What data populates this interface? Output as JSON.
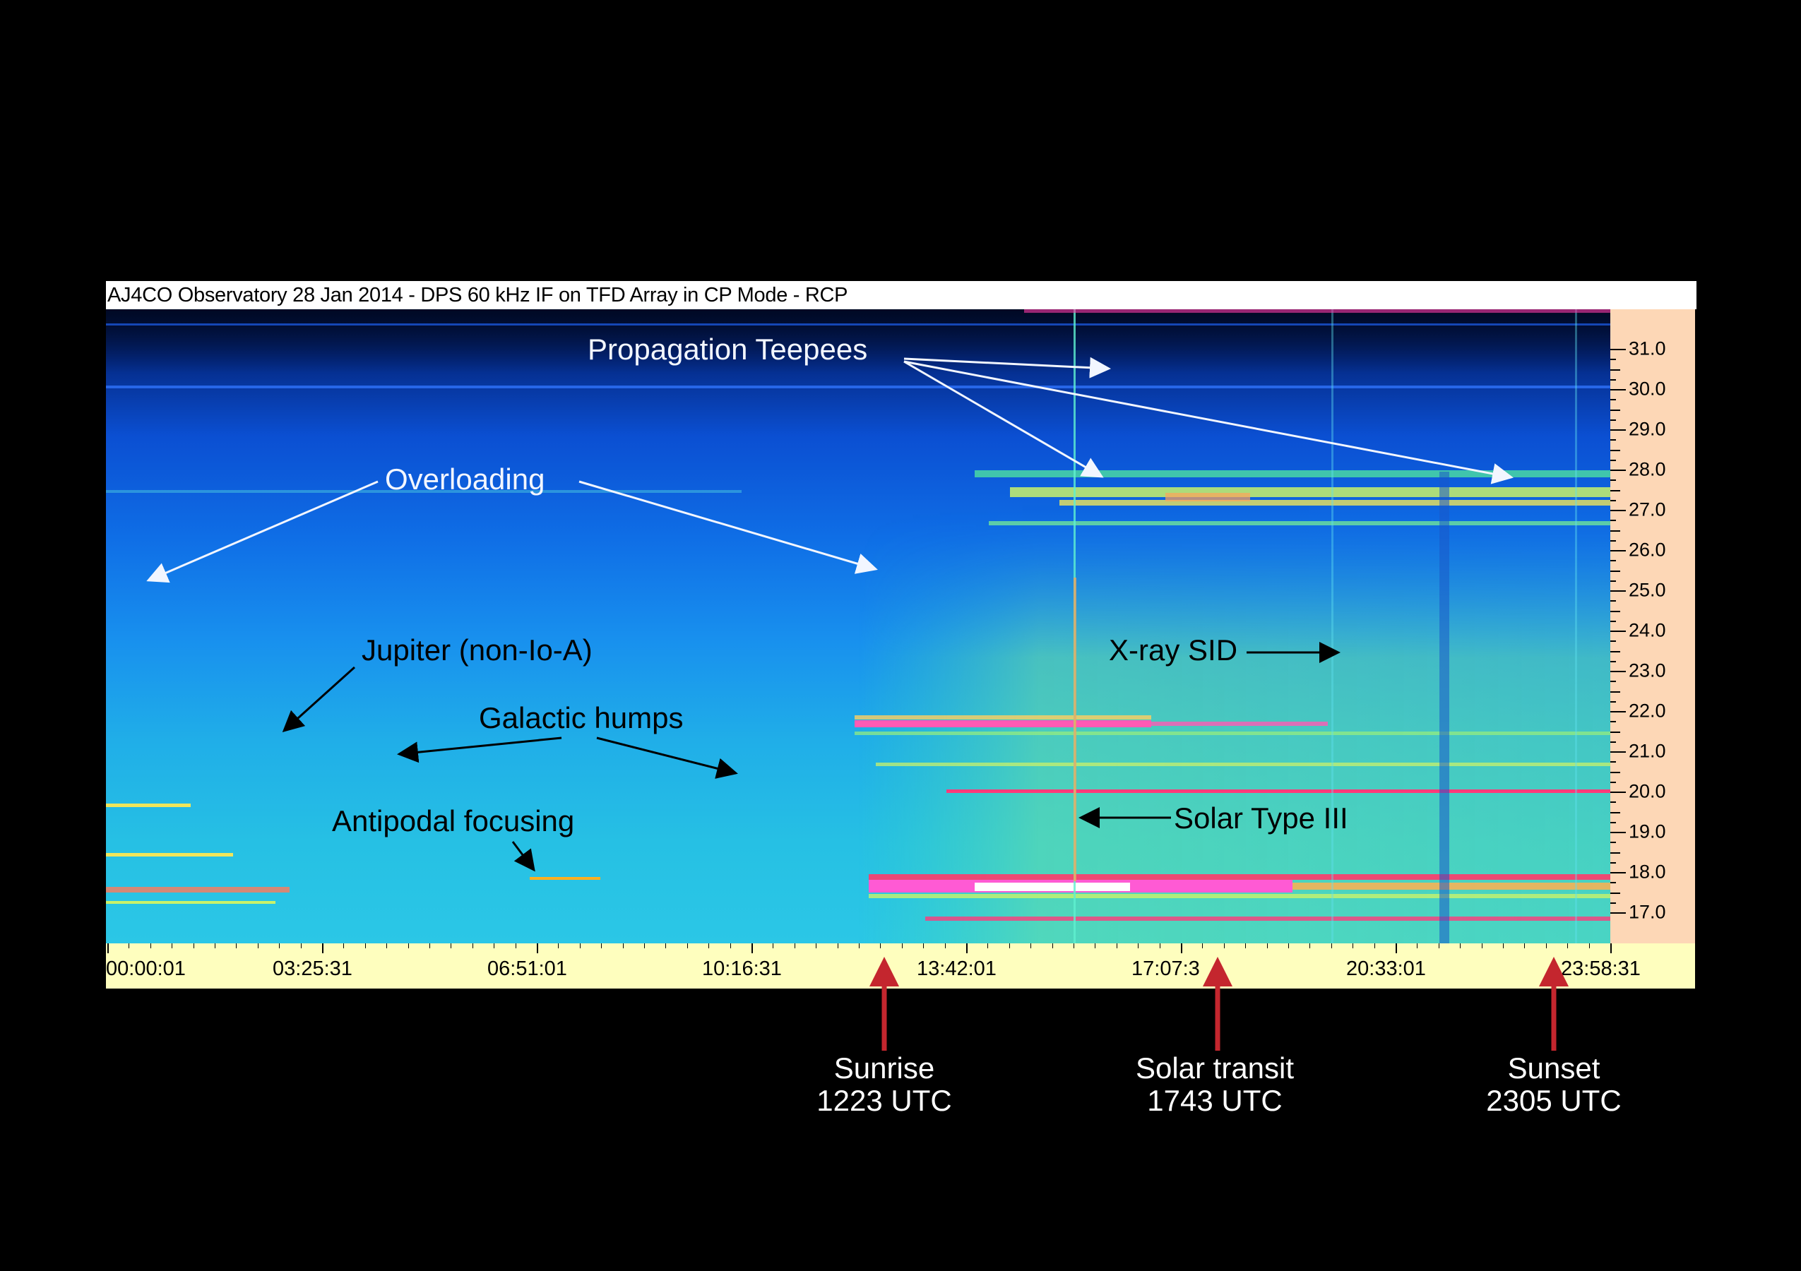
{
  "window": {
    "title": "AJ4CO Observatory 28 Jan 2014 - DPS 60 kHz IF on TFD Array in CP Mode - RCP"
  },
  "frequency_axis": {
    "labels": [
      "31.0",
      "30.0",
      "29.0",
      "28.0",
      "27.0",
      "26.0",
      "25.0",
      "24.0",
      "23.0",
      "22.0",
      "21.0",
      "20.0",
      "19.0",
      "18.0",
      "17.0"
    ]
  },
  "time_axis": {
    "labels": [
      "00:00:01",
      "03:25:31",
      "06:51:01",
      "10:16:31",
      "13:42:01",
      "17:07:3",
      "20:33:01",
      "23:58:31"
    ]
  },
  "annotations": {
    "propagation_teepees": "Propagation Teepees",
    "overloading": "Overloading",
    "jupiter": "Jupiter (non-Io-A)",
    "galactic_humps": "Galactic humps",
    "antipodal_focusing": "Antipodal focusing",
    "xray_sid": "X-ray SID",
    "solar_type_iii": "Solar Type III"
  },
  "events": {
    "sunrise": {
      "label": "Sunrise",
      "time": "1223 UTC"
    },
    "solar_transit": {
      "label": "Solar transit",
      "time": "1743 UTC"
    },
    "sunset": {
      "label": "Sunset",
      "time": "2305 UTC"
    }
  },
  "colors": {
    "background": "#000000",
    "frequency_scale": "#fdd7b6",
    "time_axis": "#fefebe",
    "event_arrow": "#c4262e",
    "annotation_arrow_white": "#f2f6ff",
    "annotation_arrow_dark": "#000000"
  }
}
